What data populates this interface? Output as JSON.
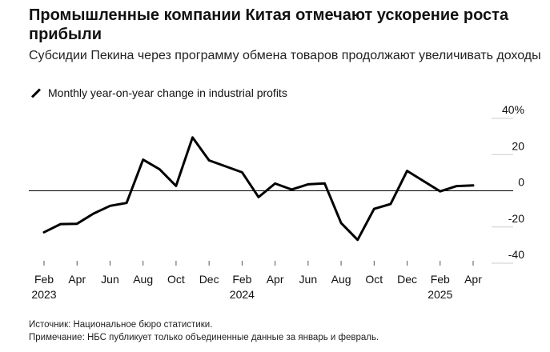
{
  "title": "Промышленные компании Китая отмечают ускорение роста прибыли",
  "subtitle": "Субсидии Пекина через программу обмена товаров продолжают увеличивать доходы",
  "legend_label": "Monthly year-on-year change in industrial profits",
  "footer": {
    "source": "Источник: Национальное бюро статистики.",
    "note": "Примечание: НБС публикует только объединенные данные за январь и февраль."
  },
  "colors": {
    "line": "#000000",
    "grid": "#cccccc",
    "zero": "#000000",
    "text": "#111111"
  },
  "chart_data": {
    "type": "line",
    "title": "Промышленные компании Китая отмечают ускорение роста прибыли",
    "series": [
      {
        "name": "Monthly year-on-year change in industrial profits",
        "x": [
          "2023-02",
          "2023-03",
          "2023-04",
          "2023-05",
          "2023-06",
          "2023-07",
          "2023-08",
          "2023-09",
          "2023-10",
          "2023-11",
          "2023-12",
          "2024-02",
          "2024-03",
          "2024-04",
          "2024-05",
          "2024-06",
          "2024-07",
          "2024-08",
          "2024-09",
          "2024-10",
          "2024-11",
          "2024-12",
          "2025-02",
          "2025-03",
          "2025-04"
        ],
        "values": [
          -22.9,
          -18.4,
          -18.2,
          -12.6,
          -8.3,
          -6.7,
          17.2,
          11.9,
          2.7,
          29.5,
          16.8,
          10.2,
          -3.5,
          4.0,
          0.7,
          3.6,
          4.1,
          -17.8,
          -27.1,
          -10.0,
          -7.3,
          11.0,
          -0.3,
          2.6,
          3.0
        ]
      }
    ],
    "x_ticks": [
      "Feb",
      "Apr",
      "Jun",
      "Aug",
      "Oct",
      "Dec",
      "Feb",
      "Apr",
      "Jun",
      "Aug",
      "Oct",
      "Dec",
      "Feb",
      "Apr"
    ],
    "x_years": [
      "2023",
      "2024",
      "2025"
    ],
    "y_ticks": [
      40,
      20,
      0,
      -20,
      -40
    ],
    "y_tick_labels": [
      "40%",
      "20",
      "0",
      "-20",
      "-40"
    ],
    "ylim": [
      -40,
      40
    ],
    "zero_line": true,
    "grid": false,
    "legend_position": "top-left"
  }
}
